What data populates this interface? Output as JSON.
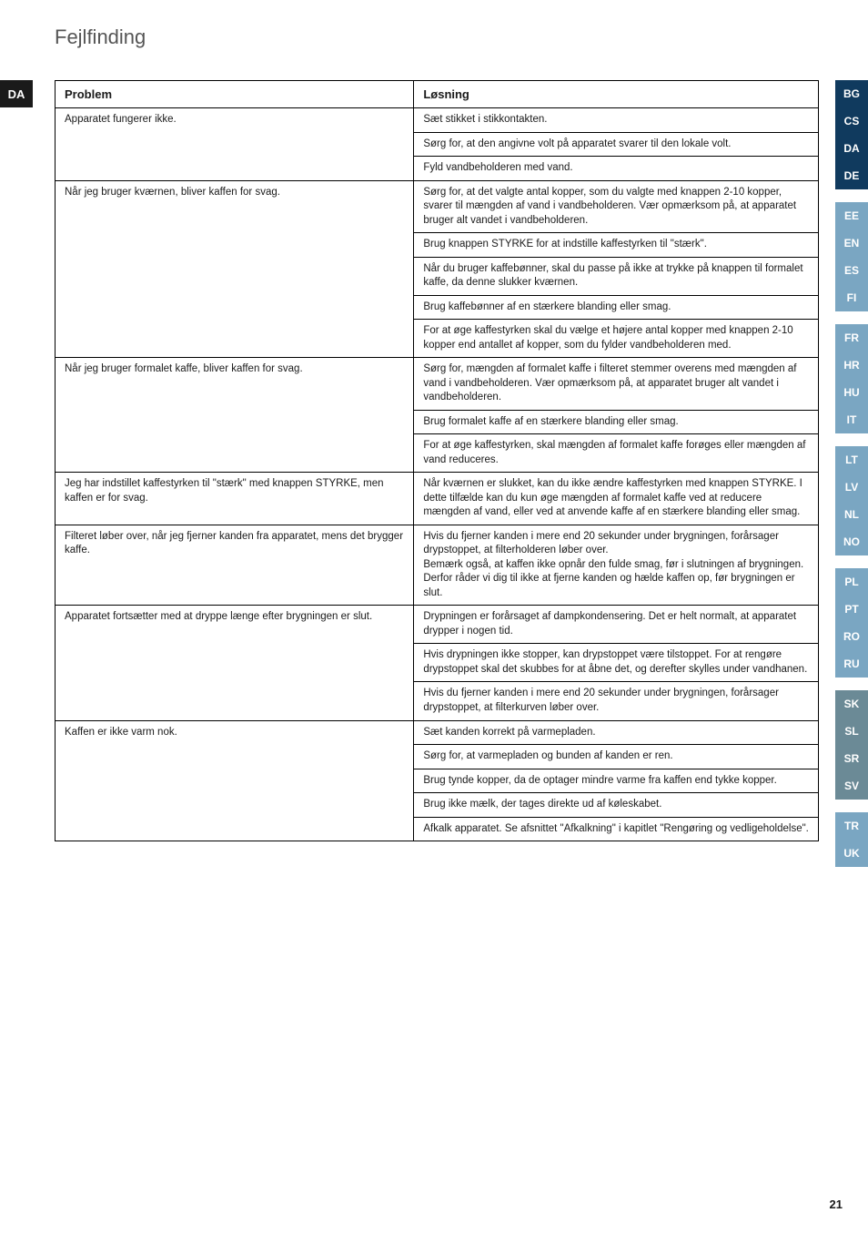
{
  "title": "Fejlfinding",
  "lang_badge_left": "DA",
  "lang_strip": [
    {
      "bg": "#103a5e",
      "items": [
        "BG",
        "CS",
        "DA",
        "DE"
      ]
    },
    {
      "bg": "#7aa6c2",
      "items": [
        "EE",
        "EN",
        "ES",
        "FI"
      ]
    },
    {
      "bg": "#7aa6c2",
      "items": [
        "FR",
        "HR",
        "HU",
        "IT"
      ]
    },
    {
      "bg": "#7aa6c2",
      "items": [
        "LT",
        "LV",
        "NL",
        "NO"
      ]
    },
    {
      "bg": "#7aa6c2",
      "items": [
        "PL",
        "PT",
        "RO",
        "RU"
      ]
    },
    {
      "bg": "#6b8a96",
      "items": [
        "SK",
        "SL",
        "SR",
        "SV"
      ]
    },
    {
      "bg": "#7aa6c2",
      "items": [
        "TR",
        "UK"
      ]
    }
  ],
  "headers": {
    "problem": "Problem",
    "solution": "Løsning"
  },
  "rows": [
    {
      "problem": "Apparatet fungerer ikke.",
      "solutions": [
        "Sæt stikket i stikkontakten.",
        "Sørg for, at den angivne volt på apparatet svarer til den lokale volt.",
        "Fyld vandbeholderen med vand."
      ]
    },
    {
      "problem": "Når jeg bruger kværnen, bliver kaffen for svag.",
      "solutions": [
        "Sørg for, at det valgte antal kopper, som du valgte med knappen 2-10 kopper, svarer til mængden af vand i vandbeholderen. Vær opmærksom på, at apparatet bruger alt vandet i vandbeholderen.",
        "Brug knappen STYRKE for at indstille kaffestyrken til \"stærk\".",
        "Når du bruger kaffebønner, skal du passe på ikke at trykke på knappen til formalet kaffe, da denne slukker kværnen.",
        "Brug kaffebønner af en stærkere blanding eller smag.",
        "For at øge kaffestyrken skal du vælge et højere antal kopper med knappen 2-10 kopper end antallet af kopper, som du fylder vandbeholderen med."
      ]
    },
    {
      "problem": "Når jeg bruger formalet kaffe, bliver kaffen for svag.",
      "solutions": [
        "Sørg for, mængden af formalet kaffe i filteret stemmer overens med mængden af vand i vandbeholderen. Vær opmærksom på, at apparatet bruger alt vandet i vandbeholderen.",
        "Brug formalet kaffe af en stærkere blanding eller smag.",
        "For at øge kaffestyrken, skal mængden af formalet kaffe forøges eller mængden af vand reduceres."
      ]
    },
    {
      "problem": "Jeg har indstillet kaffestyrken til \"stærk\" med knappen STYRKE, men kaffen er for svag.",
      "solutions": [
        "Når kværnen er slukket, kan du ikke ændre kaffestyrken med knappen STYRKE. I dette tilfælde kan du kun øge mængden af formalet kaffe ved at reducere mængden af vand, eller ved at anvende kaffe af en stærkere blanding eller smag."
      ]
    },
    {
      "problem": "Filteret løber over, når jeg fjerner kanden fra apparatet, mens det brygger kaffe.",
      "solutions": [
        "Hvis du fjerner kanden i mere end 20 sekunder under brygningen, forårsager drypstoppet, at filterholderen løber over.\nBemærk også, at kaffen ikke opnår den fulde smag, før i slutningen af brygningen.\nDerfor råder vi dig til ikke at fjerne kanden og hælde kaffen op, før brygningen er slut."
      ]
    },
    {
      "problem": "Apparatet fortsætter med at dryppe længe efter brygningen er slut.",
      "solutions": [
        "Drypningen er forårsaget af dampkondensering. Det er helt normalt, at apparatet drypper i nogen tid.",
        "Hvis drypningen ikke stopper, kan drypstoppet være tilstoppet. For at rengøre drypstoppet skal det skubbes for at åbne det, og derefter skylles under vandhanen.",
        "Hvis du fjerner kanden i mere end 20 sekunder under brygningen, forårsager drypstoppet, at filterkurven løber over."
      ]
    },
    {
      "problem": "Kaffen er ikke varm nok.",
      "solutions": [
        "Sæt kanden korrekt på varmepladen.",
        "Sørg for, at varmepladen og bunden af kanden er ren.",
        "Brug tynde kopper, da de optager mindre varme fra kaffen end tykke kopper.",
        "Brug ikke mælk, der tages direkte ud af køleskabet.",
        "Afkalk apparatet. Se afsnittet \"Afkalkning\" i kapitlet \"Rengøring og vedligeholdelse\"."
      ]
    }
  ],
  "page_number": "21"
}
